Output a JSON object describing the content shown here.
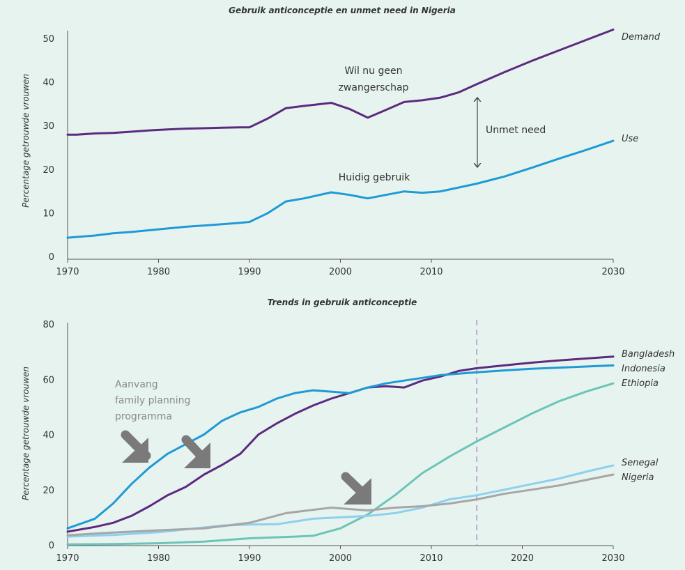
{
  "chart_data": [
    {
      "type": "line",
      "title": "Gebruik anticonceptie en unmet need in Nigeria",
      "ylabel": "Percentage getrouwde vrouwen",
      "xlabel": "",
      "xlim": [
        1970,
        2030
      ],
      "ylim": [
        0,
        50
      ],
      "xticks": [
        "1970",
        "1980",
        "1990",
        "2000",
        "2010",
        "2030"
      ],
      "xtick_values": [
        1970,
        1980,
        1990,
        2000,
        2010,
        2030
      ],
      "yticks": [
        "0",
        "10",
        "20",
        "30",
        "40",
        "50"
      ],
      "ytick_values": [
        0,
        10,
        20,
        30,
        40,
        50
      ],
      "grid": false,
      "series": [
        {
          "name": "Demand",
          "color": "#5c2a7e",
          "x": [
            1970,
            1971,
            1973,
            1975,
            1977,
            1979,
            1981,
            1983,
            1985,
            1987,
            1989,
            1990,
            1992,
            1994,
            1996,
            1999,
            2001,
            2003,
            2005,
            2007,
            2009,
            2011,
            2013,
            2015,
            2018,
            2021,
            2024,
            2027,
            2030
          ],
          "y": [
            27.9,
            27.9,
            28.2,
            28.3,
            28.6,
            28.9,
            29.1,
            29.3,
            29.4,
            29.5,
            29.6,
            29.6,
            31.6,
            34.0,
            34.5,
            35.2,
            33.8,
            31.8,
            33.6,
            35.4,
            35.8,
            36.4,
            37.6,
            39.5,
            42.2,
            44.8,
            47.2,
            49.6,
            52.0
          ]
        },
        {
          "name": "Use",
          "color": "#1e9ad6",
          "x": [
            1970,
            1973,
            1975,
            1977,
            1979,
            1981,
            1983,
            1985,
            1987,
            1989,
            1990,
            1992,
            1994,
            1996,
            1999,
            2001,
            2003,
            2005,
            2007,
            2009,
            2011,
            2013,
            2015,
            2018,
            2021,
            2024,
            2027,
            2030
          ],
          "y": [
            4.3,
            4.8,
            5.3,
            5.6,
            6.0,
            6.4,
            6.8,
            7.1,
            7.4,
            7.7,
            7.9,
            9.9,
            12.6,
            13.3,
            14.7,
            14.1,
            13.3,
            14.1,
            14.9,
            14.6,
            14.9,
            15.8,
            16.7,
            18.3,
            20.3,
            22.4,
            24.4,
            26.5
          ]
        }
      ],
      "annotations": {
        "demand_label": "Demand",
        "use_label": "Use",
        "wil_nu_line1": "Wil nu geen",
        "wil_nu_line2": "zwangerschap",
        "huidig_gebruik": "Huidig gebruik",
        "unmet_need": "Unmet need"
      }
    },
    {
      "type": "line",
      "title": "Trends in gebruik anticonceptie",
      "ylabel": "Percentage getrouwde vrouwen",
      "xlabel": "",
      "xlim": [
        1970,
        2030
      ],
      "ylim": [
        0,
        80
      ],
      "xticks": [
        "1970",
        "1980",
        "1990",
        "2000",
        "2010",
        "2020",
        "2030"
      ],
      "xtick_values": [
        1970,
        1980,
        1990,
        2000,
        2010,
        2020,
        2030
      ],
      "yticks": [
        "0",
        "20",
        "40",
        "60",
        "80"
      ],
      "ytick_values": [
        0,
        20,
        40,
        60,
        80
      ],
      "grid": false,
      "vertical_marker_x": 2015,
      "series": [
        {
          "name": "Bangladesh",
          "color": "#5c2a7e",
          "x": [
            1970,
            1973,
            1975,
            1977,
            1979,
            1981,
            1983,
            1985,
            1987,
            1989,
            1991,
            1993,
            1995,
            1997,
            1999,
            2001,
            2003,
            2005,
            2007,
            2009,
            2011,
            2013,
            2015,
            2018,
            2021,
            2024,
            2027,
            2030
          ],
          "y": [
            4.8,
            6.5,
            8.0,
            10.5,
            14.0,
            18.0,
            21.0,
            25.5,
            29.0,
            33.0,
            40.0,
            44.0,
            47.5,
            50.5,
            53.0,
            55.0,
            57.0,
            57.5,
            57.0,
            59.5,
            61.0,
            63.0,
            64.0,
            65.0,
            66.0,
            66.8,
            67.5,
            68.2
          ]
        },
        {
          "name": "Indonesia",
          "color": "#1e9ad6",
          "x": [
            1970,
            1973,
            1975,
            1977,
            1979,
            1981,
            1983,
            1985,
            1987,
            1989,
            1991,
            1993,
            1995,
            1997,
            1999,
            2001,
            2003,
            2005,
            2007,
            2009,
            2011,
            2013,
            2015,
            2018,
            2021,
            2024,
            2027,
            2030
          ],
          "y": [
            6.0,
            9.5,
            15.0,
            22.0,
            28.0,
            33.0,
            36.5,
            40.0,
            45.0,
            48.0,
            50.0,
            53.0,
            55.0,
            56.0,
            55.5,
            55.0,
            57.0,
            58.5,
            59.5,
            60.5,
            61.5,
            62.0,
            62.5,
            63.2,
            63.8,
            64.2,
            64.6,
            65.0
          ]
        },
        {
          "name": "Ethiopia",
          "color": "#6cc4b8",
          "x": [
            1970,
            1975,
            1980,
            1985,
            1990,
            1995,
            1997,
            2000,
            2003,
            2006,
            2009,
            2012,
            2015,
            2018,
            2021,
            2024,
            2027,
            2030
          ],
          "y": [
            0.2,
            0.3,
            0.6,
            1.2,
            2.4,
            3.0,
            3.3,
            6.0,
            11.0,
            18.0,
            26.0,
            32.0,
            37.5,
            42.5,
            47.5,
            52.0,
            55.5,
            58.5
          ]
        },
        {
          "name": "Senegal",
          "color": "#8dd0ef",
          "x": [
            1970,
            1975,
            1980,
            1985,
            1987,
            1990,
            1993,
            1997,
            2000,
            2003,
            2006,
            2009,
            2012,
            2015,
            2018,
            2021,
            2024,
            2027,
            2030
          ],
          "y": [
            3.0,
            3.6,
            4.6,
            6.3,
            7.0,
            7.4,
            7.5,
            9.5,
            10.0,
            10.5,
            11.5,
            13.5,
            16.5,
            18.0,
            20.0,
            22.0,
            24.0,
            26.5,
            28.8
          ]
        },
        {
          "name": "Nigeria",
          "color": "#a6a6a6",
          "x": [
            1970,
            1975,
            1980,
            1985,
            1990,
            1994,
            1999,
            2003,
            2006,
            2009,
            2012,
            2015,
            2018,
            2021,
            2024,
            2027,
            2030
          ],
          "y": [
            3.5,
            4.5,
            5.3,
            6.0,
            8.0,
            11.5,
            13.5,
            12.5,
            13.5,
            14.0,
            15.0,
            16.5,
            18.5,
            20.0,
            21.5,
            23.5,
            25.5
          ]
        }
      ],
      "annotations": {
        "aanvang_line1": "Aanvang",
        "aanvang_line2": "family planning",
        "aanvang_line3": "programma"
      }
    }
  ],
  "colors": {
    "background": "#e7f3ef",
    "axis": "#555555",
    "arrow_grey": "#7a7a7a",
    "marker_dashed": "#a98fc4"
  }
}
